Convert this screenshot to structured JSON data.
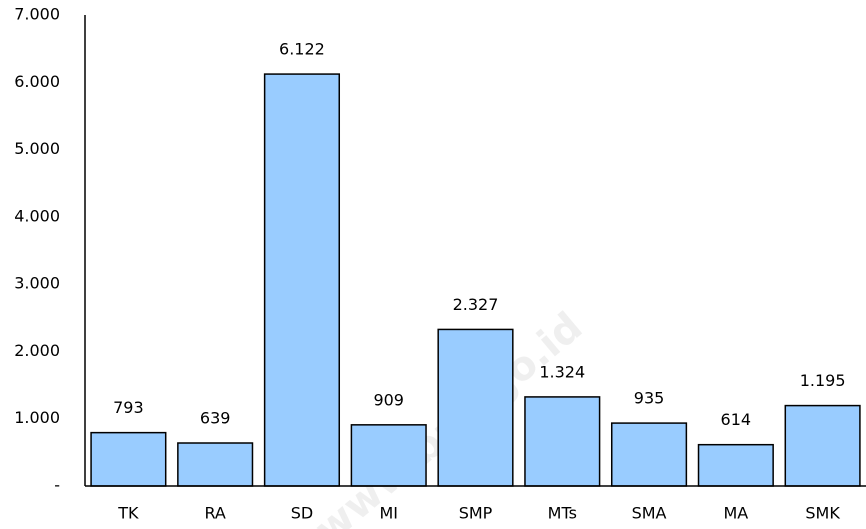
{
  "chart_data": {
    "type": "bar",
    "categories": [
      "TK",
      "RA",
      "SD",
      "MI",
      "SMP",
      "MTs",
      "SMA",
      "MA",
      "SMK"
    ],
    "values": [
      793,
      639,
      6122,
      909,
      2327,
      1324,
      935,
      614,
      1195
    ],
    "value_labels": [
      "793",
      "639",
      "6.122",
      "909",
      "2.327",
      "1.324",
      "935",
      "614",
      "1.195"
    ],
    "color": "#99ccff",
    "ylim": [
      0,
      7000
    ],
    "yticks": [
      {
        "value": 0,
        "label": "-"
      },
      {
        "value": 1000,
        "label": "1.000"
      },
      {
        "value": 2000,
        "label": "2.000"
      },
      {
        "value": 3000,
        "label": "3.000"
      },
      {
        "value": 4000,
        "label": "4.000"
      },
      {
        "value": 5000,
        "label": "5.000"
      },
      {
        "value": 6000,
        "label": "6.000"
      },
      {
        "value": 7000,
        "label": "7.000"
      }
    ],
    "grid": false,
    "watermark": "www.bps.go.id"
  }
}
